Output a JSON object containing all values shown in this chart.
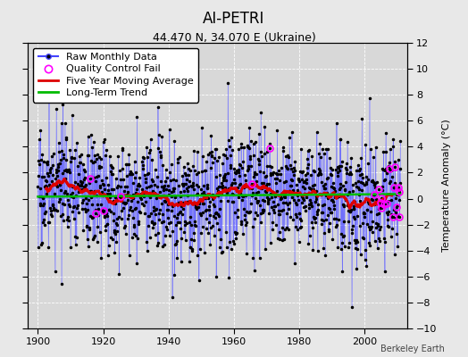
{
  "title": "AI-PETRI",
  "subtitle": "44.470 N, 34.070 E (Ukraine)",
  "ylabel": "Temperature Anomaly (°C)",
  "credit": "Berkeley Earth",
  "xlim": [
    1897,
    2013
  ],
  "ylim": [
    -10,
    12
  ],
  "yticks": [
    -10,
    -8,
    -6,
    -4,
    -2,
    0,
    2,
    4,
    6,
    8,
    10,
    12
  ],
  "xticks": [
    1900,
    1920,
    1940,
    1960,
    1980,
    2000
  ],
  "start_year": 1900,
  "end_year": 2010,
  "seed": 17,
  "background_color": "#e8e8e8",
  "plot_bg_color": "#d8d8d8",
  "line_color": "#4444ff",
  "stem_color": "#aaaaff",
  "dot_color": "#000000",
  "ma_color": "#dd0000",
  "trend_color": "#00bb00",
  "qc_color": "#ff00ff",
  "legend_fontsize": 8,
  "title_fontsize": 12,
  "subtitle_fontsize": 9,
  "noise_std": 2.2,
  "qc_scatter_n": 6,
  "qc_recent_n": 15
}
